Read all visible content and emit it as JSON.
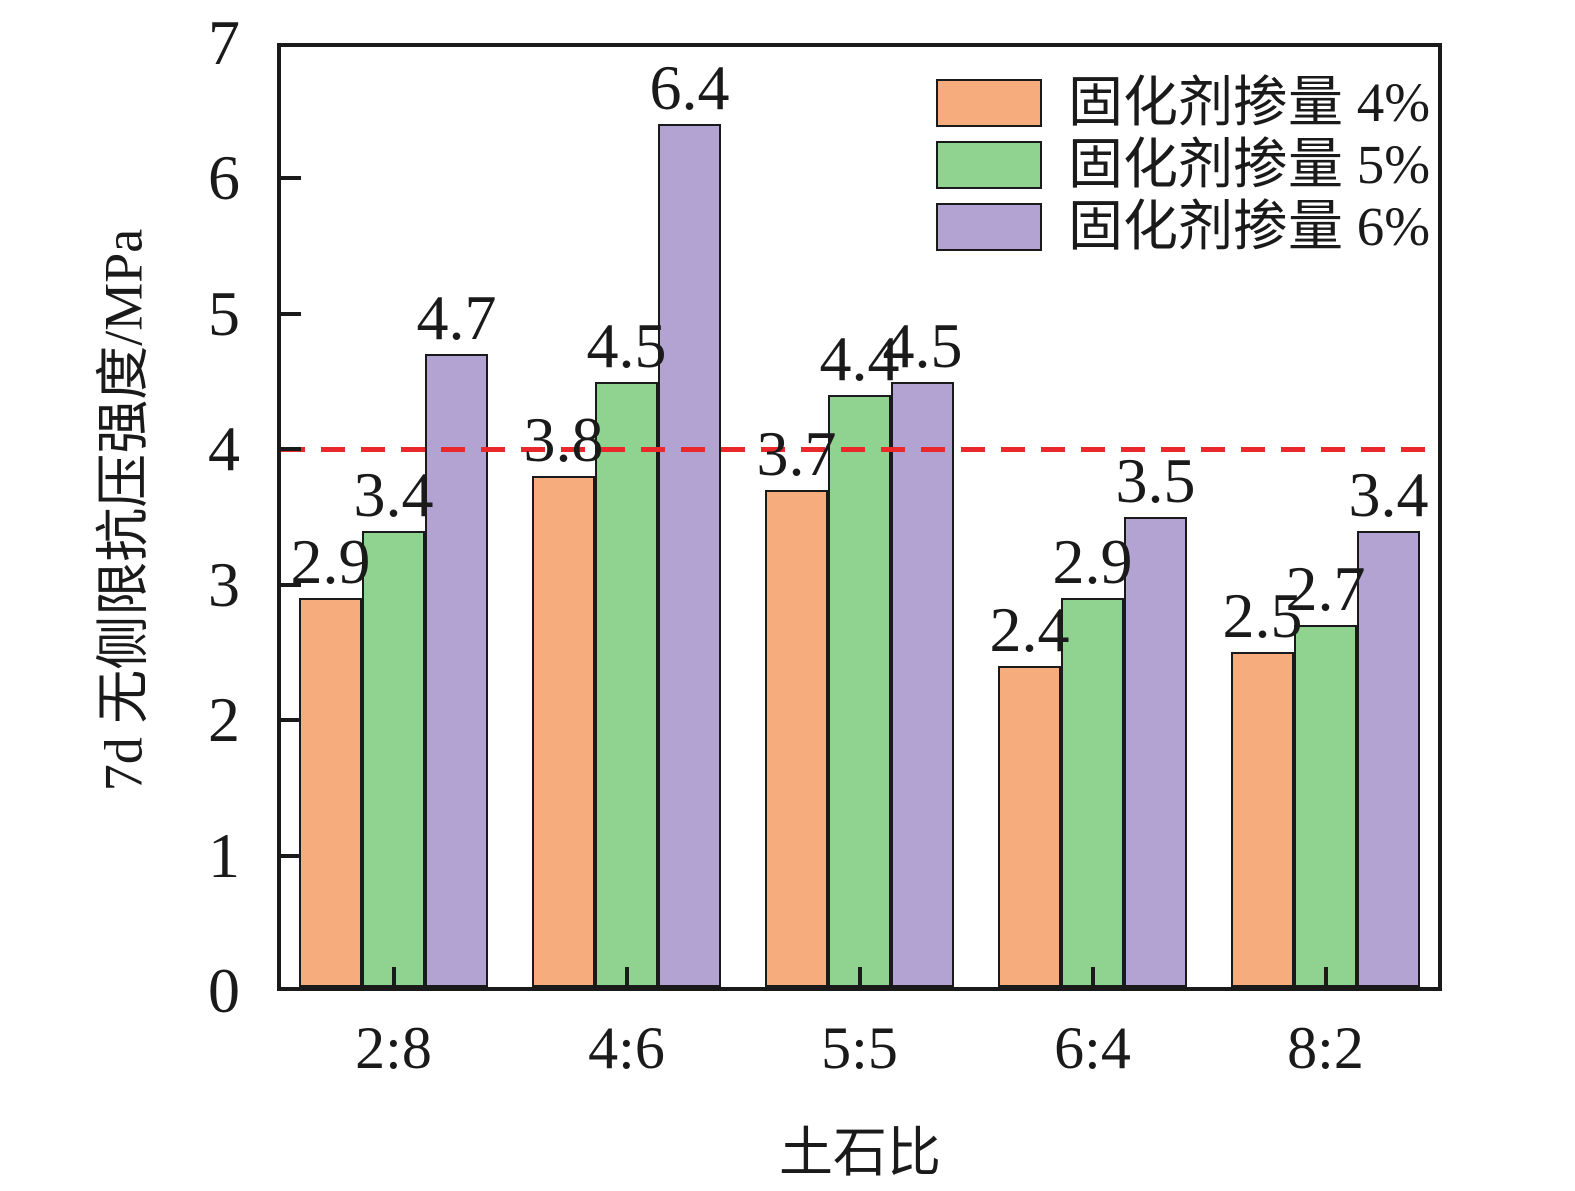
{
  "chart_data": {
    "type": "bar",
    "title": "",
    "xlabel": "土石比",
    "ylabel": "7d 无侧限抗压强度/MPa",
    "categories": [
      "2:8",
      "4:6",
      "5:5",
      "6:4",
      "8:2"
    ],
    "series": [
      {
        "name": "固化剂掺量 4%",
        "color": "#f6ac7c",
        "values": [
          2.9,
          3.8,
          3.7,
          2.4,
          2.5
        ]
      },
      {
        "name": "固化剂掺量 5%",
        "color": "#90d290",
        "values": [
          3.4,
          4.5,
          4.4,
          2.9,
          2.7
        ]
      },
      {
        "name": "固化剂掺量 6%",
        "color": "#b3a3d2",
        "values": [
          4.7,
          6.4,
          4.5,
          3.5,
          3.4
        ]
      }
    ],
    "value_labels": [
      [
        "2.9",
        "3.8",
        "3.7",
        "2.4",
        "2.5"
      ],
      [
        "3.4",
        "4.5",
        "4.4",
        "2.9",
        "2.7"
      ],
      [
        "4.7",
        "6.4",
        "4.5",
        "3.5",
        "3.4"
      ]
    ],
    "ylim": [
      0,
      7
    ],
    "yticks": [
      "0",
      "1",
      "2",
      "3",
      "4",
      "5",
      "6",
      "7"
    ],
    "grid": false,
    "legend_position": "top-right",
    "reference_line": {
      "y": 4,
      "style": "dashed",
      "color": "#e8282b"
    },
    "colors": {
      "axis": "#1a1a1a",
      "bar_edge": "#1a1a1a",
      "text": "#1a1a1a",
      "reference": "#e8282b"
    }
  }
}
